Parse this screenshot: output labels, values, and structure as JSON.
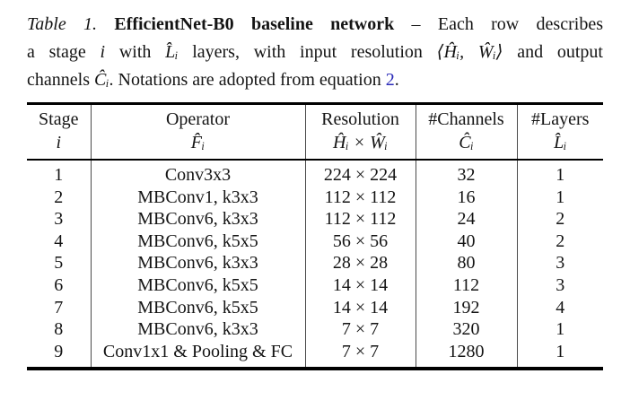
{
  "caption": {
    "line1": {
      "label": "Table 1.",
      "title": " EfficientNet-B0 baseline network",
      "rest": " – Each row describes"
    },
    "line2": {
      "t1": "a stage ",
      "v1": "i",
      "t2": " with ",
      "v2": "L̂ᵢ",
      "t3": " layers, with input resolution ",
      "v3": "⟨Ĥᵢ, Ŵᵢ⟩",
      "t4": " and output"
    },
    "line3": {
      "t1": "channels ",
      "v1": "Ĉᵢ",
      "t2": ". Notations are adopted from equation ",
      "link": "2",
      "t3": "."
    }
  },
  "table": {
    "columns": [
      {
        "name": "Stage",
        "symbol": "i"
      },
      {
        "name": "Operator",
        "symbol": "F̂ᵢ"
      },
      {
        "name": "Resolution",
        "symbol": "Ĥᵢ × Ŵᵢ"
      },
      {
        "name": "#Channels",
        "symbol": "Ĉᵢ"
      },
      {
        "name": "#Layers",
        "symbol": "L̂ᵢ"
      }
    ],
    "rows": [
      [
        "1",
        "Conv3x3",
        "224 × 224",
        "32",
        "1"
      ],
      [
        "2",
        "MBConv1, k3x3",
        "112 × 112",
        "16",
        "1"
      ],
      [
        "3",
        "MBConv6, k3x3",
        "112 × 112",
        "24",
        "2"
      ],
      [
        "4",
        "MBConv6, k5x5",
        "56 × 56",
        "40",
        "2"
      ],
      [
        "5",
        "MBConv6, k3x3",
        "28 × 28",
        "80",
        "3"
      ],
      [
        "6",
        "MBConv6, k5x5",
        "14 × 14",
        "112",
        "3"
      ],
      [
        "7",
        "MBConv6, k5x5",
        "14 × 14",
        "192",
        "4"
      ],
      [
        "8",
        "MBConv6, k3x3",
        "7 × 7",
        "320",
        "1"
      ],
      [
        "9",
        "Conv1x1 & Pooling & FC",
        "7 × 7",
        "1280",
        "1"
      ]
    ]
  },
  "colors": {
    "link_blue": "#2a2ab8",
    "text": "#141414",
    "rule": "#000000"
  }
}
